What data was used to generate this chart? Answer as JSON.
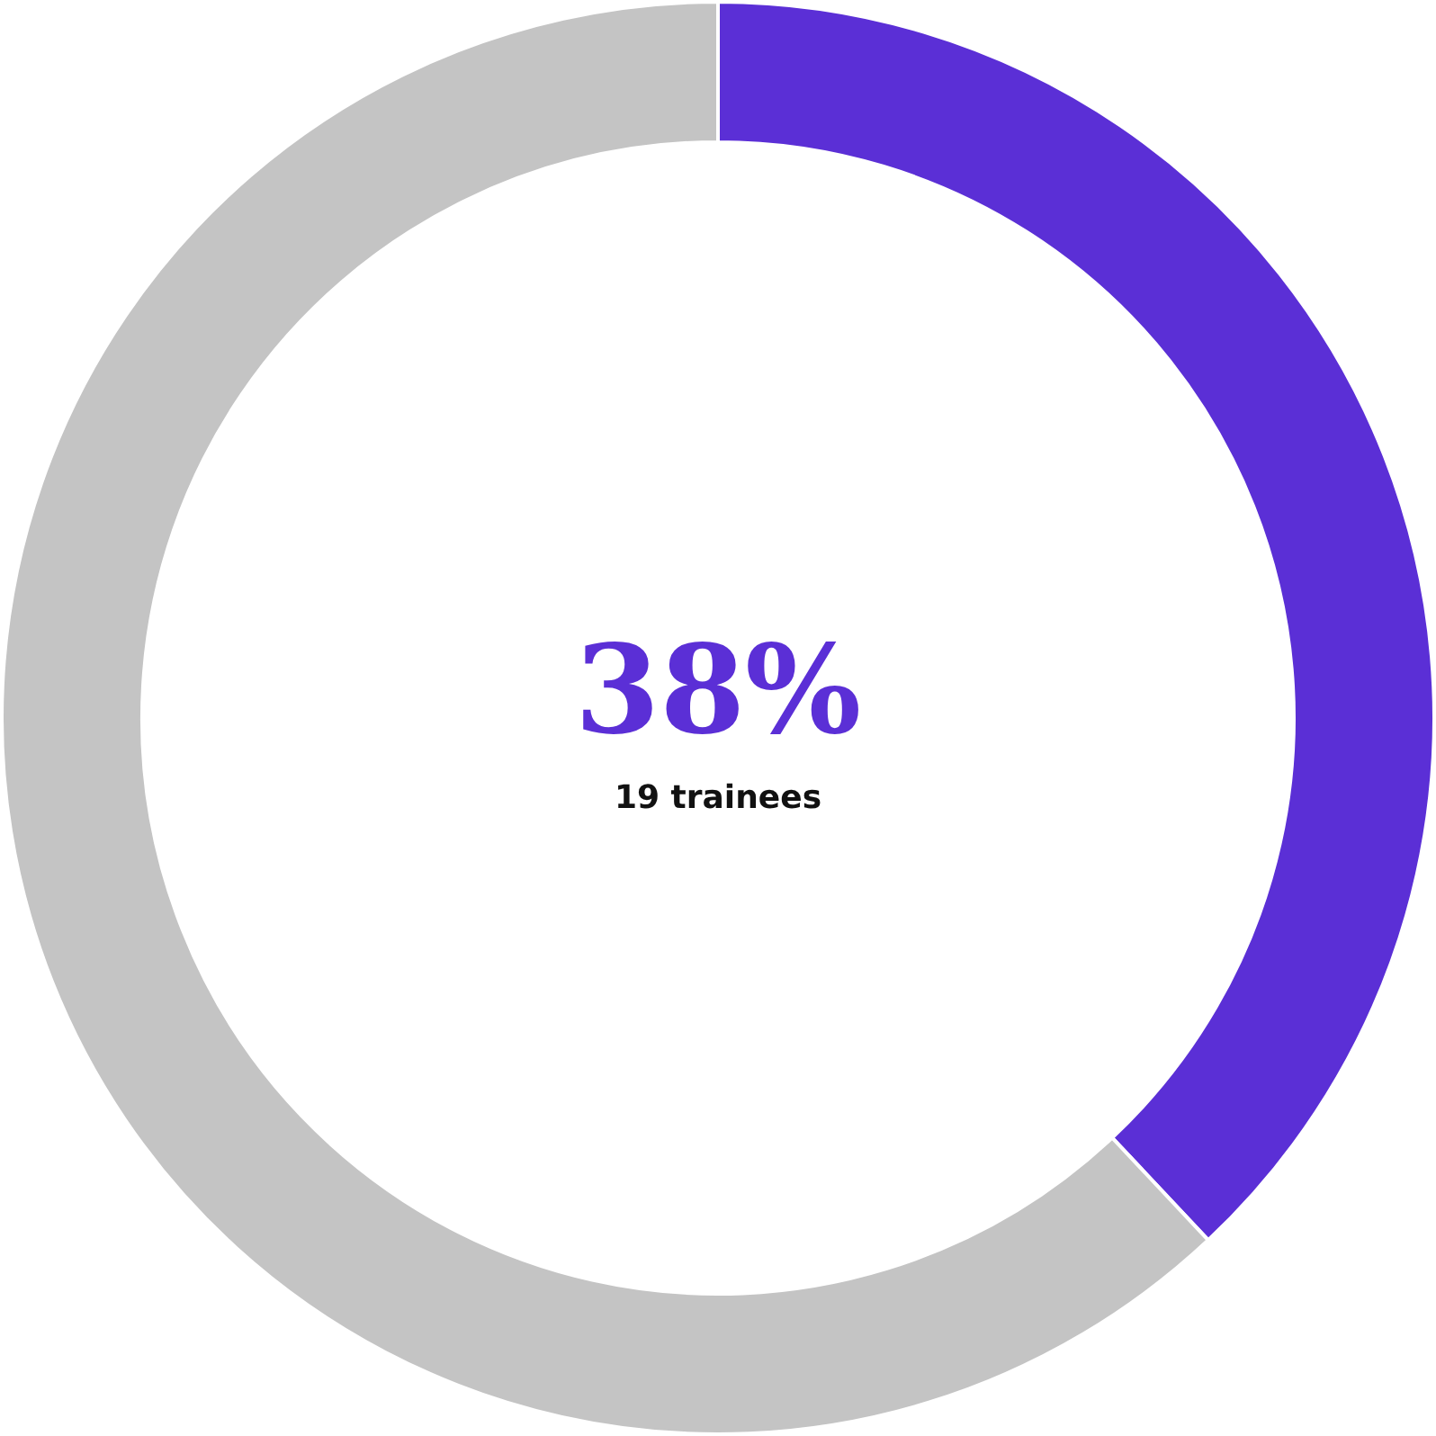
{
  "chart_data": {
    "type": "donut",
    "categories": [
      null,
      null
    ],
    "values": [
      38,
      62
    ],
    "colors": [
      "#5b2fd6",
      "#c4c4c4"
    ],
    "annotations": [
      "38%",
      "19 trainees"
    ]
  }
}
